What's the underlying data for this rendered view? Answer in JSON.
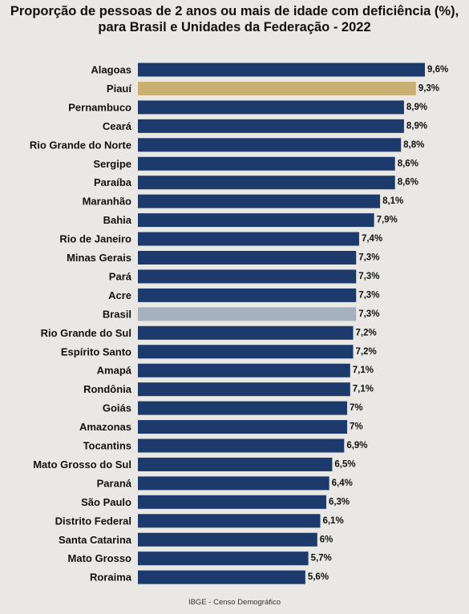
{
  "chart_data": {
    "type": "bar",
    "orientation": "horizontal",
    "title": "Proporção de pessoas de 2 anos ou mais de idade com deficiência (%),",
    "subtitle": "para Brasil e Unidades da Federação - 2022",
    "categories": [
      "Alagoas",
      "Piauí",
      "Pernambuco",
      "Ceará",
      "Rio Grande do Norte",
      "Sergipe",
      "Paraíba",
      "Maranhão",
      "Bahia",
      "Rio de Janeiro",
      "Minas Gerais",
      "Pará",
      "Acre",
      "Brasil",
      "Rio Grande do Sul",
      "Espírito Santo",
      "Amapá",
      "Rondônia",
      "Goiás",
      "Amazonas",
      "Tocantins",
      "Mato Grosso do Sul",
      "Paraná",
      "São Paulo",
      "Distrito Federal",
      "Santa Catarina",
      "Mato Grosso",
      "Roraima"
    ],
    "values": [
      9.6,
      9.3,
      8.9,
      8.9,
      8.8,
      8.6,
      8.6,
      8.1,
      7.9,
      7.4,
      7.3,
      7.3,
      7.3,
      7.3,
      7.2,
      7.2,
      7.1,
      7.1,
      7.0,
      7.0,
      6.9,
      6.5,
      6.4,
      6.3,
      6.1,
      6.0,
      5.7,
      5.6
    ],
    "value_labels": [
      "9,6%",
      "9,3%",
      "8,9%",
      "8,9%",
      "8,8%",
      "8,6%",
      "8,6%",
      "8,1%",
      "7,9%",
      "7,4%",
      "7,3%",
      "7,3%",
      "7,3%",
      "7,3%",
      "7,2%",
      "7,2%",
      "7,1%",
      "7,1%",
      "7%",
      "7%",
      "6,9%",
      "6,5%",
      "6,4%",
      "6,3%",
      "6,1%",
      "6%",
      "5,7%",
      "5,6%"
    ],
    "xlim": [
      0,
      9.6
    ],
    "grid": false,
    "colors": {
      "default": "#1c3a6b",
      "Piauí": "#c9b072",
      "Brasil": "#a6b1bf"
    },
    "source": "IBGE - Censo Demográfico"
  }
}
